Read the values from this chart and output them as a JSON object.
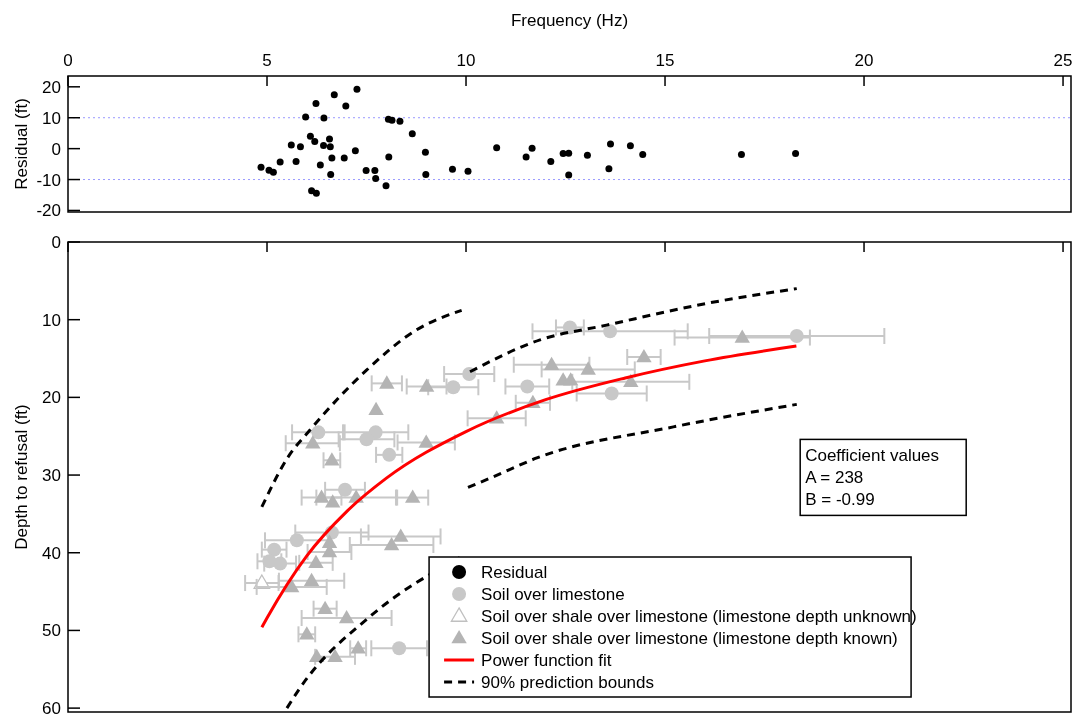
{
  "chart_data": [
    {
      "type": "scatter",
      "xlabel": "Frequency (Hz)",
      "ylabel": "Residual (ft)",
      "xlim": [
        0,
        25.2
      ],
      "xticks": [
        0,
        5,
        10,
        15,
        20,
        25
      ],
      "ylim": [
        -20.5,
        23.5
      ],
      "yticks": [
        -20,
        -10,
        0,
        10,
        20
      ],
      "marker": "circle",
      "ref_lines": [
        {
          "axis": "y",
          "value": 10,
          "color": "#9999ff",
          "line_style": "dotted"
        },
        {
          "axis": "y",
          "value": -10,
          "color": "#9999ff",
          "line_style": "dotted"
        }
      ],
      "series": [
        {
          "name": "Residual",
          "color": "#000000",
          "type": "scatter",
          "x": [
            4.85,
            5.05,
            5.16,
            5.33,
            5.61,
            5.73,
            5.84,
            5.97,
            6.09,
            6.12,
            6.2,
            6.23,
            6.24,
            6.34,
            6.42,
            6.43,
            6.57,
            6.59,
            6.6,
            6.63,
            6.69,
            6.94,
            6.98,
            7.22,
            7.26,
            7.49,
            7.71,
            7.73,
            7.99,
            8.05,
            8.06,
            8.14,
            8.34,
            8.65,
            8.98,
            8.99,
            9.66,
            10.05,
            10.77,
            11.51,
            11.66,
            12.13,
            12.44,
            12.58,
            12.58,
            13.05,
            13.59,
            13.63,
            14.13,
            14.44,
            16.92,
            18.28
          ],
          "values": [
            -6,
            -7,
            -7.6,
            -4.3,
            1.2,
            -4.2,
            0.6,
            10.2,
            4,
            -13.6,
            2.3,
            14.6,
            -14.4,
            -5.3,
            1,
            9.9,
            3.1,
            0.6,
            -8.4,
            -3,
            17.4,
            -3,
            13.8,
            -0.7,
            19.2,
            -7.1,
            -7.1,
            -9.7,
            -12,
            9.5,
            -2.7,
            9.2,
            8.9,
            4.8,
            -1.2,
            -8.4,
            -6.7,
            -7.3,
            0.3,
            -2.7,
            0.1,
            -4.2,
            -1.6,
            -1.5,
            -8.5,
            -2.1,
            -6.5,
            1.5,
            0.9,
            -1.9,
            -1.9,
            -1.6
          ]
        }
      ]
    },
    {
      "type": "scatter",
      "ylabel": "Depth to refusal (ft)",
      "xlim": [
        0,
        25.2
      ],
      "xticks": [
        0,
        5,
        10,
        15,
        20,
        25
      ],
      "ylim": [
        60.5,
        0
      ],
      "yticks": [
        0,
        10,
        20,
        30,
        40,
        50,
        60
      ],
      "tick_labels": "y",
      "legend": "bottom right",
      "annotations": [
        "Coefficient values",
        "A = 238",
        "B = -0.99"
      ],
      "series": [
        {
          "name": "Soil over limestone",
          "color": "#c8c8c8",
          "type": "scatter",
          "marker": "circle",
          "x": [
            12.61,
            13.62,
            18.31,
            10.08,
            9.68,
            11.54,
            13.66,
            6.29,
            7.73,
            7.5,
            8.07,
            6.96,
            6.63,
            5.75,
            5.18,
            5.06,
            5.33,
            8.32
          ],
          "values": [
            11,
            11.5,
            12.1,
            17,
            18.7,
            18.6,
            19.5,
            24.5,
            24.5,
            25.4,
            27.4,
            31.9,
            37.4,
            38.4,
            39.6,
            41.1,
            41.4,
            52.3
          ],
          "xerrors": [
            0.35,
            1.95,
            2.2,
            0.63,
            0.63,
            0.55,
            0.88,
            0.66,
            0.82,
            0.7,
            0.33,
            0.5,
            0.92,
            0.8,
            0.31,
            0.3,
            0.4,
            0.7
          ]
        },
        {
          "name": "Soil over shale over limestone (limestone depth unknown)",
          "color": "#c0c0c0",
          "type": "scatter",
          "marker": "triangle-open",
          "x": [
            4.87
          ],
          "values": [
            43.9
          ],
          "xerrors": [
            0.42
          ]
        },
        {
          "name": "Soil over shale over limestone (limestone depth known)",
          "color": "#b4b4b4",
          "type": "scatter",
          "marker": "triangle",
          "x": [
            16.94,
            14.47,
            12.15,
            13.07,
            12.44,
            12.63,
            14.14,
            11.68,
            10.77,
            8.01,
            9.01,
            7.74,
            6.15,
            9,
            6.63,
            6.37,
            6.65,
            7.24,
            8.66,
            6.57,
            6.57,
            8.36,
            8.13,
            6.23,
            5.62,
            6.12,
            6.46,
            7,
            6,
            6.25,
            6.71,
            7.29
          ],
          "values": [
            12.3,
            14.8,
            15.8,
            16.4,
            17.8,
            17.8,
            18,
            20.7,
            22.7,
            18.2,
            18.6,
            21.6,
            25.9,
            25.8,
            28.1,
            32.9,
            33.5,
            32.9,
            32.9,
            38.7,
            39.9,
            37.9,
            39,
            41.3,
            44.4,
            43.6,
            47.2,
            48.4,
            50.5,
            53.4,
            53.4,
            52.3
          ],
          "xerrors": [
            1.7,
            0.42,
            0.95,
            1.17,
            null,
            null,
            1.47,
            0.43,
            0.73,
            0.38,
            0.5,
            null,
            0.68,
            0.72,
            0.21,
            0.5,
            null,
            1,
            0.39,
            null,
            0.55,
            1,
            1.05,
            0.42,
            0.88,
            0.82,
            0.29,
            1.13,
            0.21,
            null,
            0.5,
            0.2
          ]
        },
        {
          "name": "Power function fit",
          "color": "#ff0000",
          "type": "line",
          "line_style": "solid",
          "x": [
            4.87,
            5,
            6,
            7,
            8,
            10,
            12,
            14,
            16,
            18.3
          ],
          "values": [
            49.6,
            48.4,
            40.4,
            34.7,
            30.4,
            24.4,
            20.3,
            17.5,
            15.3,
            13.4
          ]
        },
        {
          "name": "90% prediction bounds",
          "color": "#000000",
          "type": "line",
          "line_style": "dashed",
          "x": [
            4.87,
            5.54,
            6.08,
            7.5,
            8.76,
            9.89
          ],
          "values": [
            34.1,
            27.6,
            24.2,
            16.5,
            11.3,
            8.8
          ]
        },
        {
          "color": "#000000",
          "type": "line",
          "line_style": "dashed",
          "x": [
            10.1,
            11.86,
            13.53,
            16.05,
            18.31
          ],
          "values": [
            16.7,
            12.6,
            10.7,
            7.9,
            6
          ]
        },
        {
          "color": "#000000",
          "type": "line",
          "line_style": "dashed",
          "x": [
            10.05,
            10.65,
            11.78,
            15.21,
            18.31
          ],
          "values": [
            31.6,
            30.3,
            27.8,
            23.8,
            20.9
          ]
        },
        {
          "color": "#000000",
          "type": "line",
          "line_style": "dashed",
          "x": [
            5.5,
            5.83,
            7.59,
            9.89
          ],
          "values": [
            60,
            57.4,
            48.2,
            40.5
          ]
        }
      ]
    }
  ]
}
